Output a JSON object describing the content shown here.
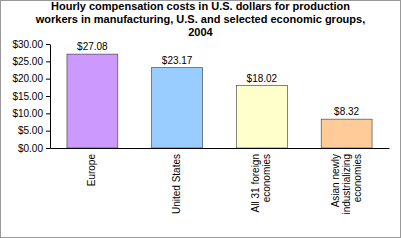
{
  "chart_data": {
    "type": "bar",
    "title": "Hourly compensation costs in U.S. dollars for production workers in manufacturing, U.S. and selected economic groups, 2004",
    "categories": [
      "Europe",
      "United States",
      "All 31 foreign economies",
      "Asian newly industrializing economies"
    ],
    "values": [
      27.08,
      23.17,
      18.02,
      8.32
    ],
    "value_labels": [
      "$27.08",
      "$23.17",
      "$18.02",
      "$8.32"
    ],
    "colors": [
      "#cc99ff",
      "#99ccff",
      "#ffffcc",
      "#ffcc99"
    ],
    "ylim": [
      0,
      30
    ],
    "yticks": [
      {
        "value": 0,
        "label": "$0.00"
      },
      {
        "value": 5,
        "label": "$5.00"
      },
      {
        "value": 10,
        "label": "$10.00"
      },
      {
        "value": 15,
        "label": "$15.00"
      },
      {
        "value": 20,
        "label": "$20.00"
      },
      {
        "value": 25,
        "label": "$25.00"
      },
      {
        "value": 30,
        "label": "$30.00"
      }
    ],
    "data_labels": true,
    "grid": false
  }
}
